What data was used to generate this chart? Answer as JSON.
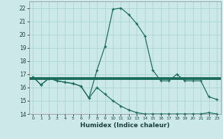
{
  "xlabel": "Humidex (Indice chaleur)",
  "background_color": "#cce8e8",
  "grid_color": "#aad4d4",
  "line_color": "#1a6b5a",
  "xlim": [
    -0.5,
    23.5
  ],
  "ylim": [
    14,
    22.5
  ],
  "yticks": [
    14,
    15,
    16,
    17,
    18,
    19,
    20,
    21,
    22
  ],
  "xticks": [
    0,
    1,
    2,
    3,
    4,
    5,
    6,
    7,
    8,
    9,
    10,
    11,
    12,
    13,
    14,
    15,
    16,
    17,
    18,
    19,
    20,
    21,
    22,
    23
  ],
  "series1_x": [
    0,
    1,
    2,
    3,
    4,
    5,
    6,
    7,
    8,
    9,
    10,
    11,
    12,
    13,
    14,
    15,
    16,
    17,
    18,
    19,
    20,
    21,
    22,
    23
  ],
  "series1_y": [
    16.8,
    16.2,
    16.7,
    16.5,
    16.4,
    16.3,
    16.1,
    15.2,
    17.3,
    19.1,
    21.9,
    22.0,
    21.5,
    20.8,
    19.9,
    17.3,
    16.5,
    16.5,
    17.0,
    16.5,
    16.5,
    16.5,
    15.3,
    15.1
  ],
  "series2_x": [
    0,
    1,
    2,
    3,
    4,
    5,
    6,
    7,
    8,
    9,
    10,
    11,
    12,
    13,
    14,
    15,
    16,
    17,
    18,
    19,
    20,
    21,
    22,
    23
  ],
  "series2_y": [
    16.8,
    16.2,
    16.7,
    16.5,
    16.4,
    16.3,
    16.1,
    15.2,
    16.0,
    15.5,
    15.0,
    14.6,
    14.3,
    14.1,
    14.0,
    14.0,
    14.0,
    14.0,
    14.0,
    14.0,
    14.0,
    14.0,
    14.1,
    14.0
  ],
  "series3_x": [
    -0.5,
    23.5
  ],
  "series3_y": [
    16.7,
    16.7
  ],
  "marker": "+"
}
